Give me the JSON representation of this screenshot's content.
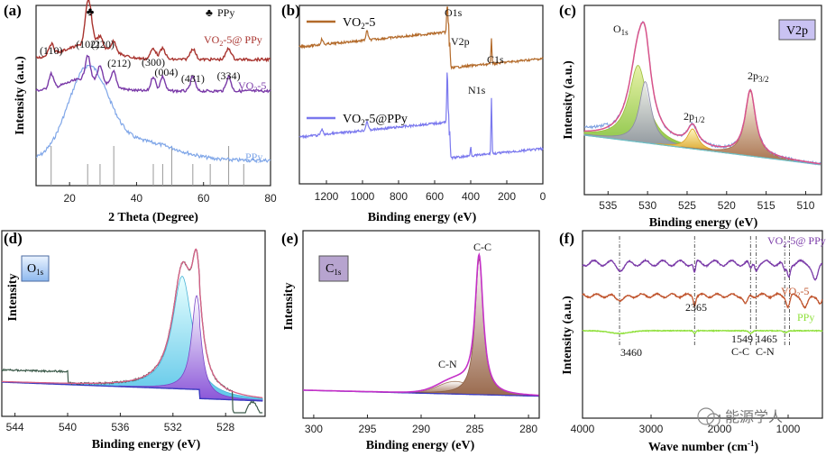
{
  "watermark": "能源学人",
  "colors": {
    "vo2": "#7a3aa8",
    "composite": "#a8332e",
    "ppy": "#7fa6e8",
    "survey_vo2": "#b36a2a",
    "survey_comp": "#7a78ee",
    "xps_env": "#d9548a",
    "ftir_ppy": "#8fe03a"
  },
  "chart_data": [
    {
      "panel": "(a)",
      "type": "line",
      "xlabel": "2 Theta (Degree)",
      "ylabel": "Intensity (a.u.)",
      "xlim": [
        10,
        80
      ],
      "xticks": [
        "20",
        "40",
        "60",
        "80"
      ],
      "legend": [
        {
          "symbol": "♣",
          "label": "PPy"
        }
      ],
      "series": [
        {
          "name": "VO2-5@ PPy",
          "label_main": "VO",
          "label_sub": "2",
          "label_rest": "-5@ PPy",
          "color": "#a8332e"
        },
        {
          "name": "VO2-5",
          "label_main": "VO",
          "label_sub": "2",
          "label_rest": "-5",
          "color": "#7a3aa8"
        },
        {
          "name": "PPy",
          "label_main": "PPy",
          "label_sub": "",
          "label_rest": "",
          "color": "#7fa6e8"
        }
      ],
      "peaks": [
        {
          "two_theta": 14.5,
          "label": "(110)"
        },
        {
          "two_theta": 25.4,
          "label": "(102)"
        },
        {
          "two_theta": 29.1,
          "label": "(220)"
        },
        {
          "two_theta": 33.2,
          "label": "(212)"
        },
        {
          "two_theta": 45.0,
          "label": "(300)"
        },
        {
          "two_theta": 47.8,
          "label": "(004)"
        },
        {
          "two_theta": 56.8,
          "label": "(431)"
        },
        {
          "two_theta": 67.5,
          "label": "(334)"
        }
      ],
      "club_marker": {
        "two_theta": 25.9,
        "symbol": "♣"
      }
    },
    {
      "panel": "(b)",
      "type": "line",
      "xlabel": "Binding energy (eV)",
      "ylabel": "",
      "xlim": [
        1350,
        0
      ],
      "xticks": [
        "1200",
        "1000",
        "800",
        "600",
        "400",
        "200",
        "0"
      ],
      "legend": [
        {
          "main": "VO",
          "sub": "2",
          "rest": "-5",
          "color": "#b36a2a"
        },
        {
          "main": "VO",
          "sub": "2",
          "rest": "-5@PPy",
          "color": "#7a78ee"
        }
      ],
      "annotations": [
        {
          "energy": 530,
          "label": "O1s"
        },
        {
          "energy": 517,
          "label": "V2p"
        },
        {
          "energy": 400,
          "label": "N1s"
        },
        {
          "energy": 285,
          "label": "C1s"
        }
      ]
    },
    {
      "panel": "(c)",
      "type": "line",
      "xlabel": "Binding energy (eV)",
      "ylabel": "Intensity (a.u.)",
      "xlim": [
        538,
        508
      ],
      "xticks": [
        "535",
        "530",
        "525",
        "520",
        "515",
        "510"
      ],
      "badge": "V2p",
      "peaks": [
        {
          "energy": 531.2,
          "label_main": "O",
          "label_sub": "1s"
        },
        {
          "energy": 524.3,
          "label_main": "2p",
          "label_sub": "1/2"
        },
        {
          "energy": 517.0,
          "label_main": "2p",
          "label_sub": "3/2"
        }
      ]
    },
    {
      "panel": "(d)",
      "type": "line",
      "xlabel": "Binding energy (eV)",
      "ylabel": "Intensity",
      "xlim": [
        545,
        525
      ],
      "xticks": [
        "544",
        "540",
        "536",
        "532",
        "528"
      ],
      "badge_main": "O",
      "badge_sub": "1s",
      "components": [
        {
          "energy": 531.3
        },
        {
          "energy": 530.2
        }
      ]
    },
    {
      "panel": "(e)",
      "type": "line",
      "xlabel": "Binding energy (eV)",
      "ylabel": "Intensity",
      "xlim": [
        301,
        279
      ],
      "xticks": [
        "300",
        "295",
        "290",
        "285",
        "280"
      ],
      "badge_main": "C",
      "badge_sub": "1s",
      "peaks": [
        {
          "energy": 284.6,
          "label": "C-C"
        },
        {
          "energy": 286.5,
          "label": "C-N"
        }
      ]
    },
    {
      "panel": "(f)",
      "type": "line",
      "xlabel_main": "Wave number (cm",
      "xlabel_sup": "-1",
      "xlabel_end": ")",
      "ylabel": "Intensity (a.u.)",
      "xlim": [
        4000,
        500
      ],
      "xticks": [
        "4000",
        "3000",
        "2000",
        "1000"
      ],
      "series": [
        {
          "name": "VO2-5@ PPy",
          "main": "VO",
          "sub": "2",
          "rest": "-5@ PPy",
          "color": "#7a3aa8"
        },
        {
          "name": "VO2-5",
          "main": "VO",
          "sub": "2",
          "rest": "-5",
          "color": "#c0552e"
        },
        {
          "name": "PPy",
          "main": "PPy",
          "sub": "",
          "rest": "",
          "color": "#8fe03a"
        }
      ],
      "markers": [
        {
          "wavenumber": 3460,
          "label": "3460"
        },
        {
          "wavenumber": 2365,
          "label": "2365"
        },
        {
          "wavenumber": 1549,
          "label": "1549",
          "label2": "C-C"
        },
        {
          "wavenumber": 1465,
          "label": "1465",
          "label2": "C-N"
        }
      ]
    }
  ]
}
